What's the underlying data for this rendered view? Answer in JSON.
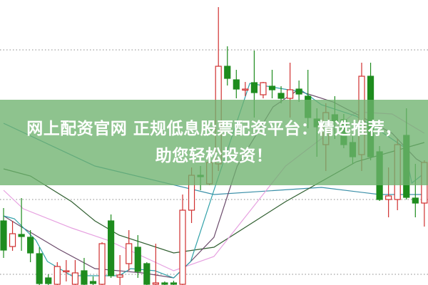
{
  "banner": {
    "line1": "网上配资官网 正规低息股票配资平台：精选推荐，",
    "line2": "助您轻松投资！",
    "color": "#6eb26e"
  },
  "chart_data": {
    "type": "candlestick",
    "title": "",
    "xlabel": "",
    "ylabel": "",
    "ylim": [
      0,
      40
    ],
    "grid": "dotted horizontal",
    "gridlines": [
      33,
      12,
      1.5
    ],
    "colors": {
      "up": "#d03030",
      "down": "#1e8c1e"
    },
    "candles_ohlc": [
      [
        9.0,
        10.8,
        3.8,
        4.9
      ],
      [
        5.4,
        9.0,
        4.8,
        7.2
      ],
      [
        7.1,
        12.2,
        4.8,
        6.8
      ],
      [
        6.7,
        7.7,
        3.2,
        4.5
      ],
      [
        4.4,
        5.3,
        0,
        0.2
      ],
      [
        1.0,
        1.5,
        0,
        0.2
      ],
      [
        0.1,
        3.2,
        0,
        2.6
      ],
      [
        2.0,
        3.5,
        0.5,
        2.0
      ],
      [
        0.1,
        3.5,
        0,
        1.7
      ],
      [
        2.0,
        3.8,
        0,
        0.1
      ],
      [
        0.5,
        1.2,
        0,
        0.2
      ],
      [
        0.1,
        6.0,
        0,
        5.8
      ],
      [
        9.0,
        9.9,
        1.0,
        1.3
      ],
      [
        1.1,
        4.2,
        0,
        1.4
      ],
      [
        3.0,
        7.7,
        2.0,
        5.8
      ],
      [
        5.3,
        7.0,
        1.0,
        1.9
      ],
      [
        3.0,
        3.2,
        0,
        0.1
      ],
      [
        0.1,
        5.8,
        0,
        0.3
      ],
      [
        0.3,
        0.5,
        0,
        0.1
      ],
      [
        0.3,
        0.6,
        0,
        0.1
      ],
      [
        0.1,
        12.7,
        0,
        10.5
      ],
      [
        10.5,
        16.5,
        8.7,
        15.4
      ],
      [
        15.4,
        16.7,
        13.3,
        15.2
      ],
      [
        14.2,
        17.5,
        14.0,
        17.2
      ],
      [
        17.0,
        39.0,
        16.0,
        30.7
      ],
      [
        30.7,
        33.5,
        28.0,
        29.0
      ],
      [
        28.8,
        30.2,
        26.2,
        27.5
      ],
      [
        27.5,
        28.5,
        26.5,
        27.5
      ],
      [
        28.4,
        32.9,
        23.5,
        27.0
      ],
      [
        26.7,
        28.5,
        26.2,
        28.4
      ],
      [
        27.9,
        30.2,
        26.2,
        27.4
      ],
      [
        26.9,
        27.9,
        25.5,
        26.2
      ],
      [
        26.2,
        31.2,
        23.5,
        27.4
      ],
      [
        27.5,
        28.7,
        25.7,
        26.8
      ],
      [
        26.5,
        30.2,
        22.0,
        23.5
      ],
      [
        23.3,
        24.8,
        18.0,
        22.2
      ],
      [
        19.7,
        25.5,
        16.0,
        24.2
      ],
      [
        23.9,
        26.5,
        20.5,
        23.0
      ],
      [
        23.2,
        24.0,
        19.2,
        19.7
      ],
      [
        20.0,
        21.0,
        17.0,
        18.0
      ],
      [
        18.3,
        31.2,
        16.0,
        29.3
      ],
      [
        29.3,
        31.2,
        17.5,
        18.0
      ],
      [
        18.7,
        19.5,
        11.8,
        12.0
      ],
      [
        12.0,
        16.5,
        9.5,
        12.5
      ],
      [
        12.0,
        20.5,
        10.5,
        19.7
      ],
      [
        21.0,
        24.8,
        12.0,
        12.3
      ],
      [
        12.2,
        17.0,
        9.5,
        11.5
      ],
      [
        11.5,
        17.5,
        8.2,
        17.2
      ]
    ],
    "moving_averages": [
      {
        "color": "#3a8fa8",
        "points": [
          [
            0,
            22.7
          ],
          [
            10.2,
            16.7
          ],
          [
            23.5,
            12.7
          ],
          [
            35.5,
            13.7
          ],
          [
            42,
            12.7
          ],
          [
            47,
            12.7
          ]
        ]
      },
      {
        "color": "#2f5e2f",
        "points": [
          [
            0,
            16.3
          ],
          [
            3,
            15.3
          ],
          [
            7.6,
            11.7
          ],
          [
            10.2,
            9.0
          ],
          [
            12.9,
            7.0
          ],
          [
            19,
            4.5
          ],
          [
            23.5,
            5.3
          ],
          [
            31.5,
            11.7
          ],
          [
            39.4,
            17.3
          ],
          [
            47,
            20.0
          ]
        ]
      },
      {
        "color": "#e6a0e0",
        "points": [
          [
            0,
            13.3
          ],
          [
            2.2,
            10.7
          ],
          [
            7.6,
            8.0
          ],
          [
            11.6,
            6.3
          ],
          [
            19,
            2.0
          ],
          [
            23.5,
            4.0
          ],
          [
            31.5,
            16.7
          ],
          [
            39.4,
            24.3
          ],
          [
            43.4,
            24.0
          ],
          [
            47,
            21.3
          ]
        ]
      },
      {
        "color": "#6b4a6b",
        "points": [
          [
            0,
            9.7
          ],
          [
            2.2,
            8.0
          ],
          [
            6.2,
            5.0
          ],
          [
            10.2,
            2.3
          ],
          [
            15.5,
            1.7
          ],
          [
            19,
            1.0
          ],
          [
            20.9,
            3.3
          ],
          [
            23.5,
            6.7
          ],
          [
            26.1,
            16.7
          ],
          [
            30.1,
            25.0
          ],
          [
            32.8,
            27.3
          ],
          [
            36.8,
            25.7
          ],
          [
            39.4,
            24.0
          ],
          [
            43.4,
            21.3
          ],
          [
            46.1,
            17.7
          ],
          [
            47,
            17.0
          ]
        ]
      },
      {
        "color": "#2fa0a8",
        "points": [
          [
            0,
            9.7
          ],
          [
            1.2,
            9.3
          ],
          [
            3.6,
            6.3
          ],
          [
            4.9,
            3.3
          ],
          [
            7.6,
            1.3
          ],
          [
            12.9,
            1.3
          ],
          [
            14.2,
            2.3
          ],
          [
            16.9,
            2.0
          ],
          [
            19,
            1.0
          ],
          [
            20.9,
            3.3
          ],
          [
            23.5,
            13.3
          ],
          [
            27.5,
            28.3
          ],
          [
            32.3,
            27.3
          ],
          [
            33.3,
            27.3
          ],
          [
            35.5,
            25.3
          ],
          [
            39.4,
            23.7
          ],
          [
            41.6,
            22.0
          ],
          [
            44.8,
            19.3
          ],
          [
            45.6,
            14.3
          ],
          [
            47,
            15.7
          ]
        ]
      }
    ]
  }
}
